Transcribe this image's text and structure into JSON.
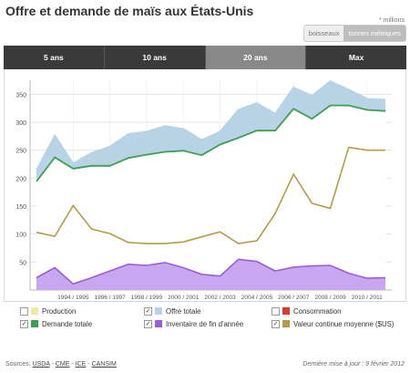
{
  "title": "Offre et demande de maïs aux États-Unis",
  "unit_note": "* millions",
  "unit_toggle": [
    {
      "label": "boisseaux",
      "active": false
    },
    {
      "label": "tonnes métriques",
      "active": true
    }
  ],
  "tabs": [
    {
      "label": "5 ans",
      "active": false
    },
    {
      "label": "10 ans",
      "active": false
    },
    {
      "label": "20 ans",
      "active": true
    },
    {
      "label": "Max",
      "active": false
    }
  ],
  "chart_data": {
    "type": "line",
    "x": [
      "1992/1993",
      "1993/1994",
      "1994/1995",
      "1995/1996",
      "1996/1997",
      "1997/1998",
      "1998/1999",
      "1999/2000",
      "2000/2001",
      "2001/2002",
      "2002/2003",
      "2003/2004",
      "2004/2005",
      "2005/2006",
      "2006/2007",
      "2007/2008",
      "2008/2009",
      "2009/2010",
      "2010/2011",
      "2011/2012"
    ],
    "xtick_labels": [
      "1994 / 1995",
      "1996 / 1997",
      "1998 / 1999",
      "2000 / 2001",
      "2002 / 2003",
      "2004 / 2005",
      "2006 / 2007",
      "2008 / 2009",
      "2010 / 2011"
    ],
    "ylim": [
      0,
      375
    ],
    "yticks": [
      50,
      100,
      150,
      200,
      250,
      300,
      350
    ],
    "grid": true,
    "series": [
      {
        "name": "Offre totale",
        "color": "#b9d3e6",
        "style": "area",
        "values": [
          214,
          276,
          226,
          245,
          256,
          279,
          283,
          293,
          288,
          268,
          283,
          322,
          334,
          315,
          362,
          347,
          373,
          358,
          342,
          340
        ]
      },
      {
        "name": "Demande totale",
        "color": "#3f9e56",
        "style": "line",
        "values": [
          194,
          237,
          217,
          222,
          222,
          236,
          242,
          247,
          249,
          241,
          260,
          272,
          285,
          285,
          324,
          306,
          330,
          330,
          322,
          320
        ]
      },
      {
        "name": "Valeur continue moyenne ($US)",
        "color": "#b69b45",
        "style": "line",
        "values": [
          103,
          96,
          151,
          109,
          101,
          85,
          83,
          83,
          86,
          95,
          104,
          83,
          88,
          137,
          207,
          155,
          146,
          255,
          250,
          250
        ]
      },
      {
        "name": "Inventaire de fin d'année",
        "color": "#9b5dd6",
        "style": "area",
        "values": [
          22,
          40,
          11,
          22,
          34,
          46,
          44,
          49,
          40,
          28,
          25,
          55,
          51,
          34,
          41,
          43,
          44,
          30,
          21,
          22
        ]
      }
    ]
  },
  "legend": [
    [
      {
        "label": "Production",
        "checked": false,
        "color": "#f2e6a2"
      },
      {
        "label": "Offre totale",
        "checked": true,
        "color": "#b9d3e6"
      },
      {
        "label": "Consommation",
        "checked": false,
        "color": "#d93a2e"
      }
    ],
    [
      {
        "label": "Demande totale",
        "checked": true,
        "color": "#3f9e56"
      },
      {
        "label": "Inventaire de fin d'année",
        "checked": true,
        "color": "#9b5dd6"
      },
      {
        "label": "Valeur continue moyenne ($US)",
        "checked": true,
        "color": "#b69b45"
      }
    ]
  ],
  "footer": {
    "prefix": "Sources:",
    "sources": [
      "USDA",
      "CME",
      "ICE",
      "CANSIM"
    ],
    "sep": " - ",
    "updated": "Dernière mise à jour : 9 février 2012"
  }
}
